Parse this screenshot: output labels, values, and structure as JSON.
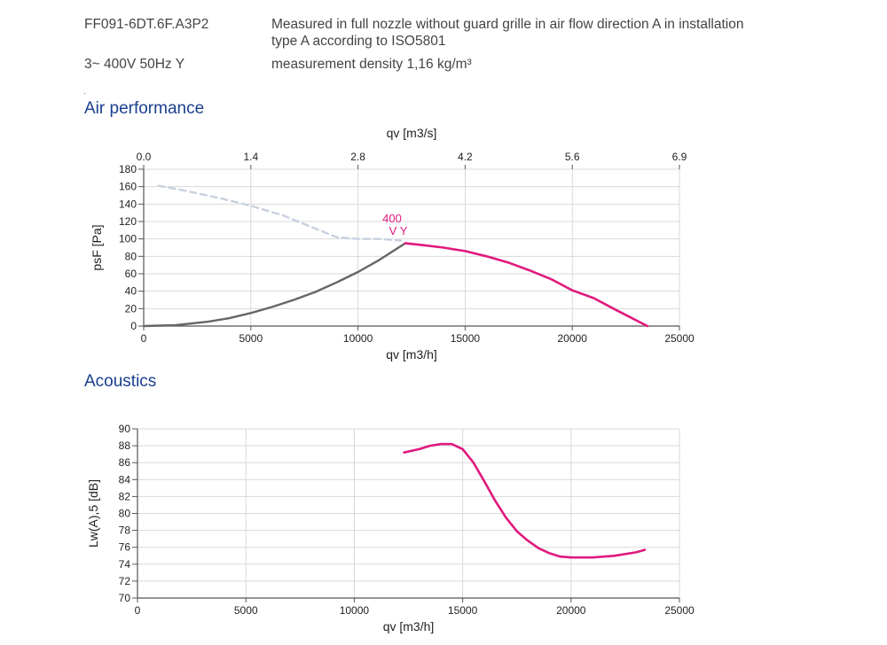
{
  "header": {
    "model": "FF091-6DT.6F.A3P2",
    "description_line1": "Measured in full nozzle without guard grille in air flow direction A in installation",
    "description_line2": "type A according to ISO5801",
    "supply": "3~ 400V 50Hz Y",
    "density": "measurement density 1,16 kg/m³",
    "dot": "."
  },
  "sections": {
    "air_title": "Air performance",
    "acoustics_title": "Acoustics"
  },
  "colors": {
    "accent": "#e0197d",
    "gray_curve": "#666666",
    "dashed_curve": "#c8d0e0",
    "grid": "#d9d9d9",
    "title": "#1a3f8f"
  },
  "chart_data": [
    {
      "type": "line",
      "title": "Air performance",
      "xlabel": "qv [m3/h]",
      "ylabel": "psF [Pa]",
      "x2label": "qv [m3/s]",
      "xlim": [
        0,
        25000
      ],
      "ylim": [
        0,
        180
      ],
      "x_ticks": [
        "0",
        "5000",
        "10000",
        "15000",
        "20000",
        "25000"
      ],
      "y_ticks": [
        "0",
        "20",
        "40",
        "60",
        "80",
        "100",
        "120",
        "140",
        "160",
        "180"
      ],
      "x2_ticks": [
        "0.0",
        "1.4",
        "2.8",
        "4.2",
        "5.6",
        "6.9"
      ],
      "grid": true,
      "curve_label_line1": "400",
      "curve_label_line2": "V Y",
      "series": [
        {
          "style": "dashed",
          "x": [
            700,
            2000,
            3500,
            5000,
            6500,
            8000,
            9000,
            10000,
            11000,
            12000
          ],
          "y": [
            161,
            155,
            147,
            138,
            127,
            112,
            102,
            100,
            100,
            98
          ]
        },
        {
          "style": "gray",
          "x": [
            0,
            1500,
            3000,
            4000,
            5000,
            6000,
            7000,
            8000,
            9000,
            10000,
            11000,
            12200
          ],
          "y": [
            0,
            1,
            5,
            9,
            15,
            22,
            30,
            39,
            50,
            62,
            76,
            95
          ]
        },
        {
          "style": "accent",
          "x": [
            12200,
            13000,
            14000,
            15000,
            16000,
            17000,
            18000,
            19000,
            20000,
            21000,
            22000,
            23500
          ],
          "y": [
            95,
            93,
            90,
            86,
            80,
            73,
            64,
            54,
            41,
            32,
            19,
            0
          ]
        }
      ]
    },
    {
      "type": "line",
      "title": "Acoustics",
      "xlabel": "qv [m3/h]",
      "ylabel": "Lw(A),5 [dB]",
      "xlim": [
        0,
        25000
      ],
      "ylim": [
        70,
        90
      ],
      "x_ticks": [
        "0",
        "5000",
        "10000",
        "15000",
        "20000",
        "25000"
      ],
      "y_ticks": [
        "70",
        "72",
        "74",
        "76",
        "78",
        "80",
        "82",
        "84",
        "86",
        "88",
        "90"
      ],
      "grid": true,
      "series": [
        {
          "style": "accent",
          "x": [
            12300,
            13000,
            13500,
            14000,
            14500,
            15000,
            15500,
            16000,
            16500,
            17000,
            17500,
            18000,
            18500,
            19000,
            19500,
            20000,
            21000,
            22000,
            23000,
            23400
          ],
          "y": [
            87.2,
            87.6,
            88.0,
            88.2,
            88.2,
            87.6,
            86.0,
            83.8,
            81.5,
            79.5,
            77.9,
            76.8,
            75.9,
            75.3,
            74.9,
            74.8,
            74.8,
            75.0,
            75.4,
            75.7
          ]
        }
      ]
    }
  ]
}
